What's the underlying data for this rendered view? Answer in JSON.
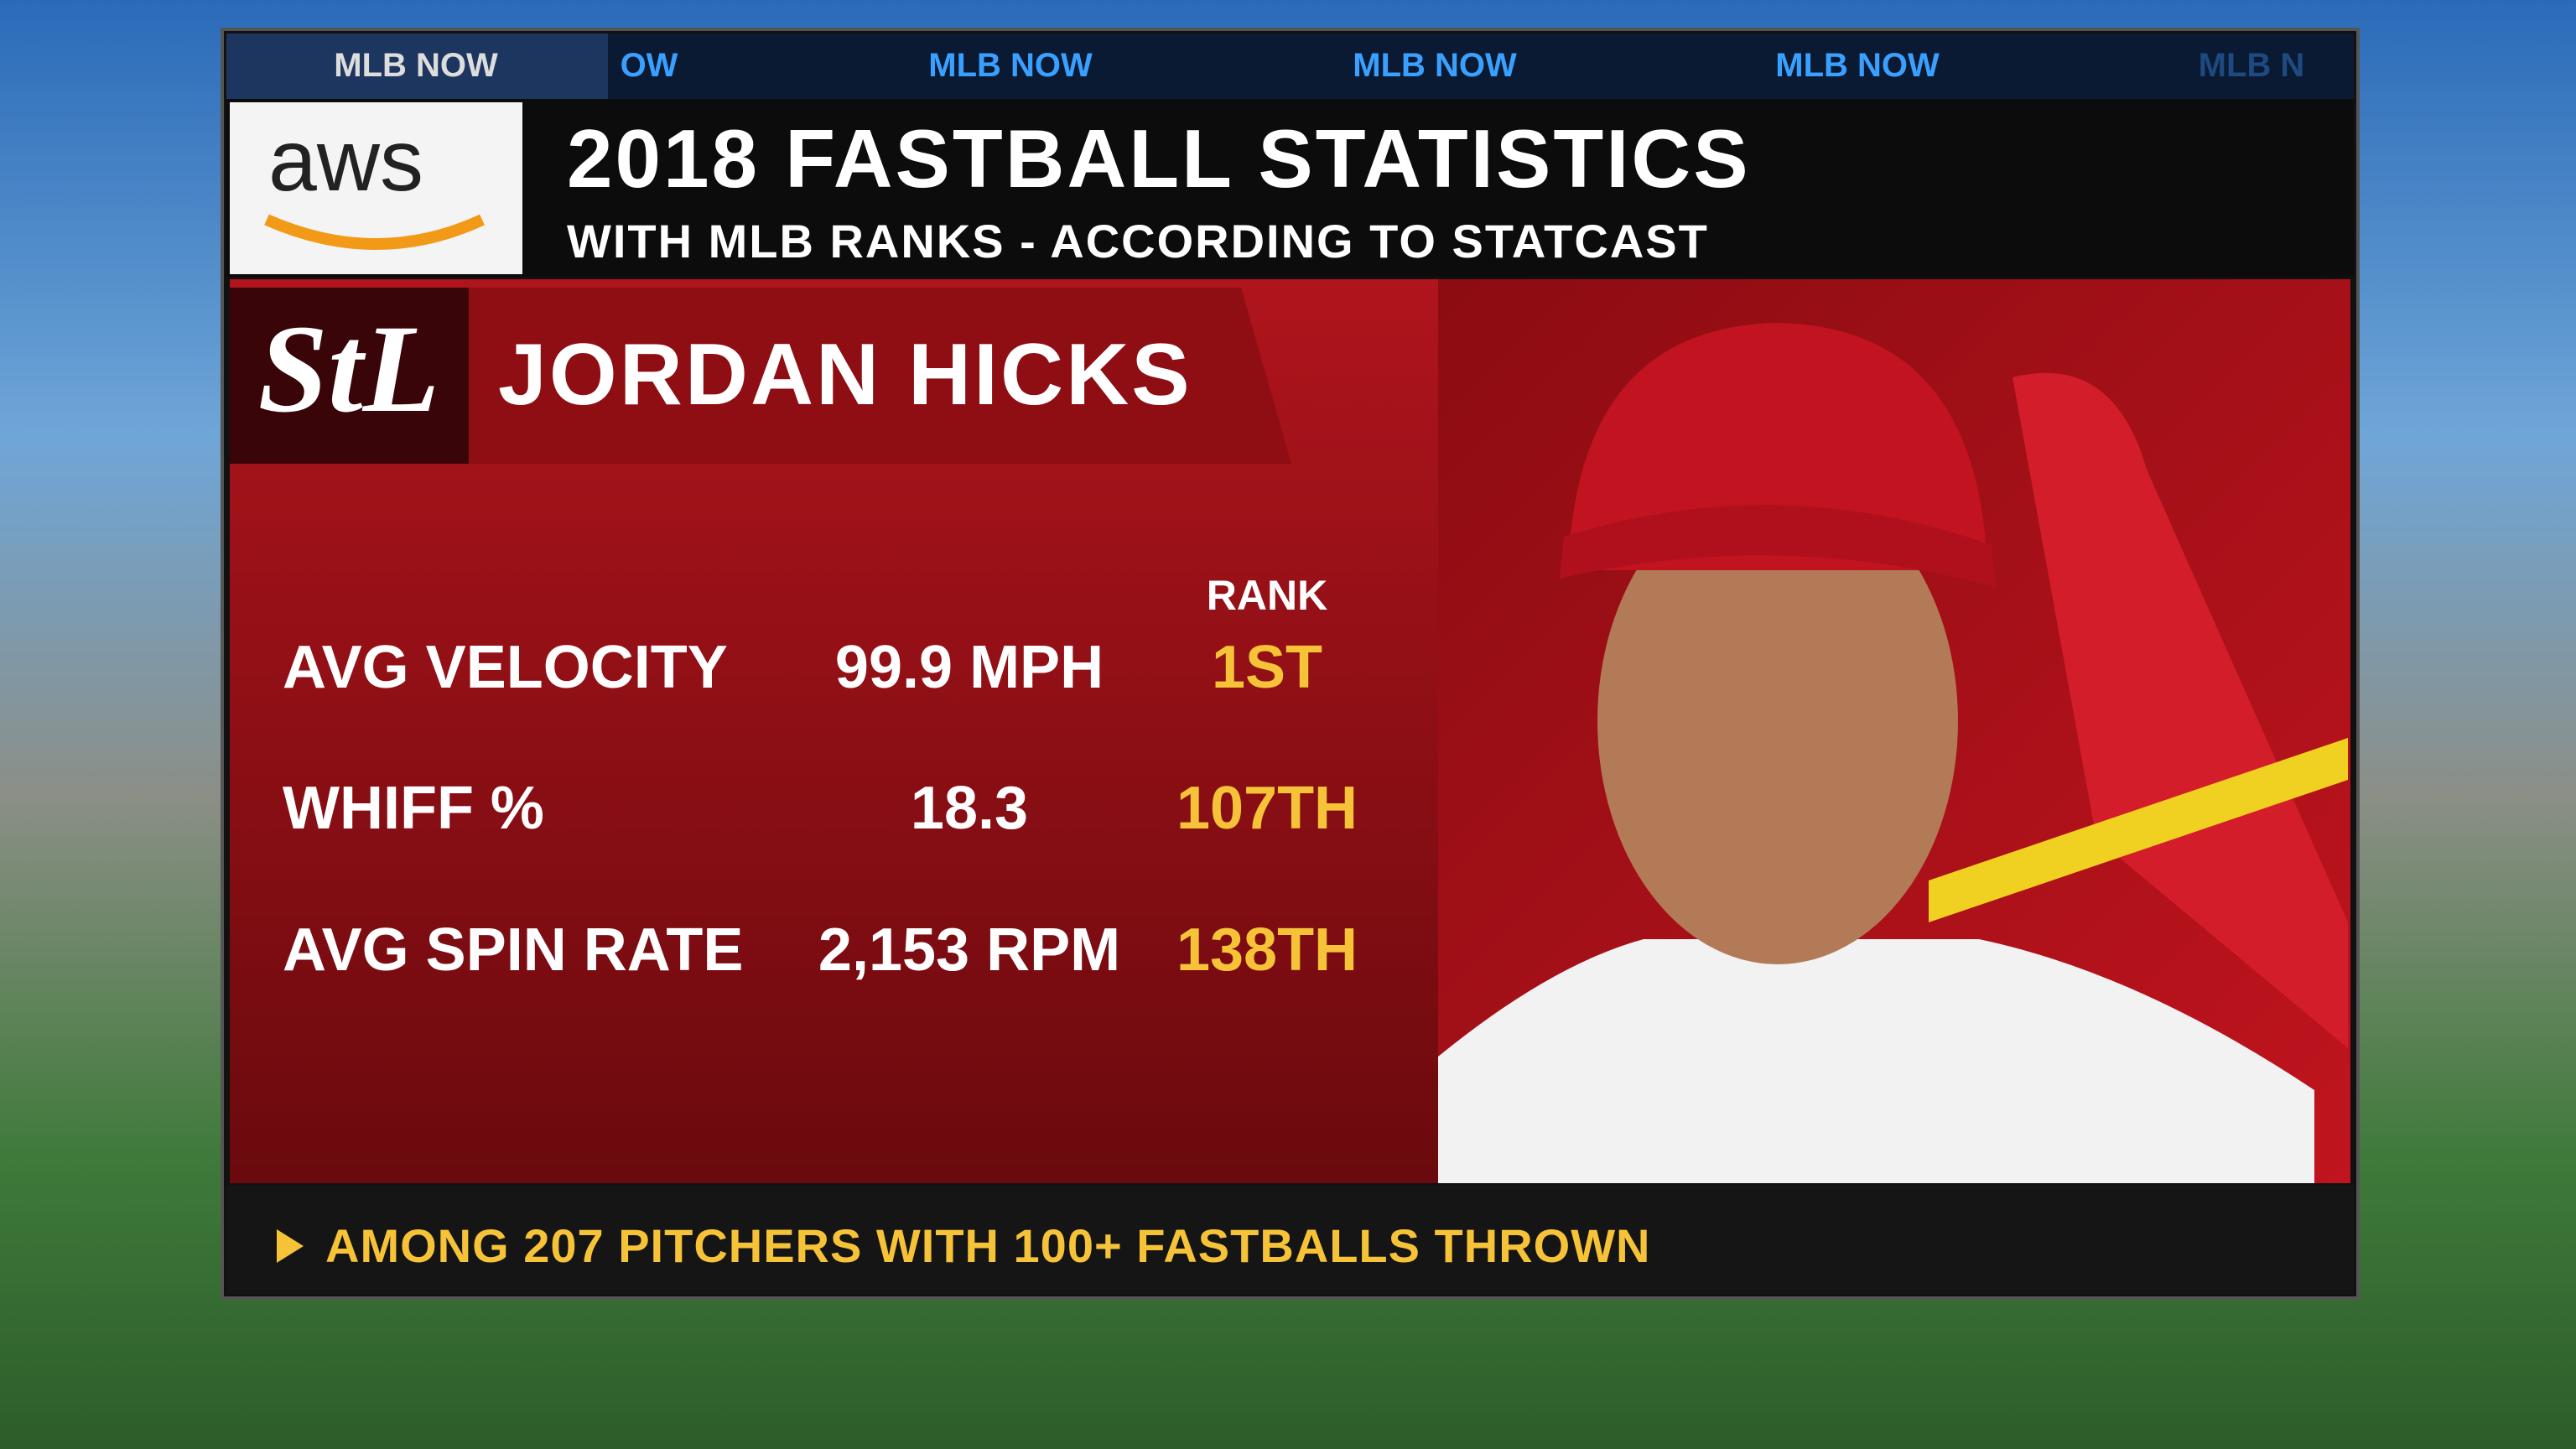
{
  "ticker": [
    "MLB NOW",
    "OW",
    "MLB NOW",
    "MLB NOW",
    "MLB NOW",
    "MLB N"
  ],
  "header": {
    "logo": "aws",
    "title": "2018 FASTBALL STATISTICS",
    "subtitle": "WITH MLB RANKS - ACCORDING TO STATCAST"
  },
  "player": {
    "name": "JORDAN HICKS"
  },
  "table": {
    "rank_header": "RANK",
    "rows": [
      [
        "AVG VELOCITY",
        "99.9 MPH",
        "1ST"
      ],
      [
        "WHIFF %",
        "18.3",
        "107TH"
      ],
      [
        "AVG SPIN RATE",
        "2,153 RPM",
        "138TH"
      ]
    ]
  },
  "footer": "AMONG 207 PITCHERS WITH 100+ FASTBALLS THROWN"
}
